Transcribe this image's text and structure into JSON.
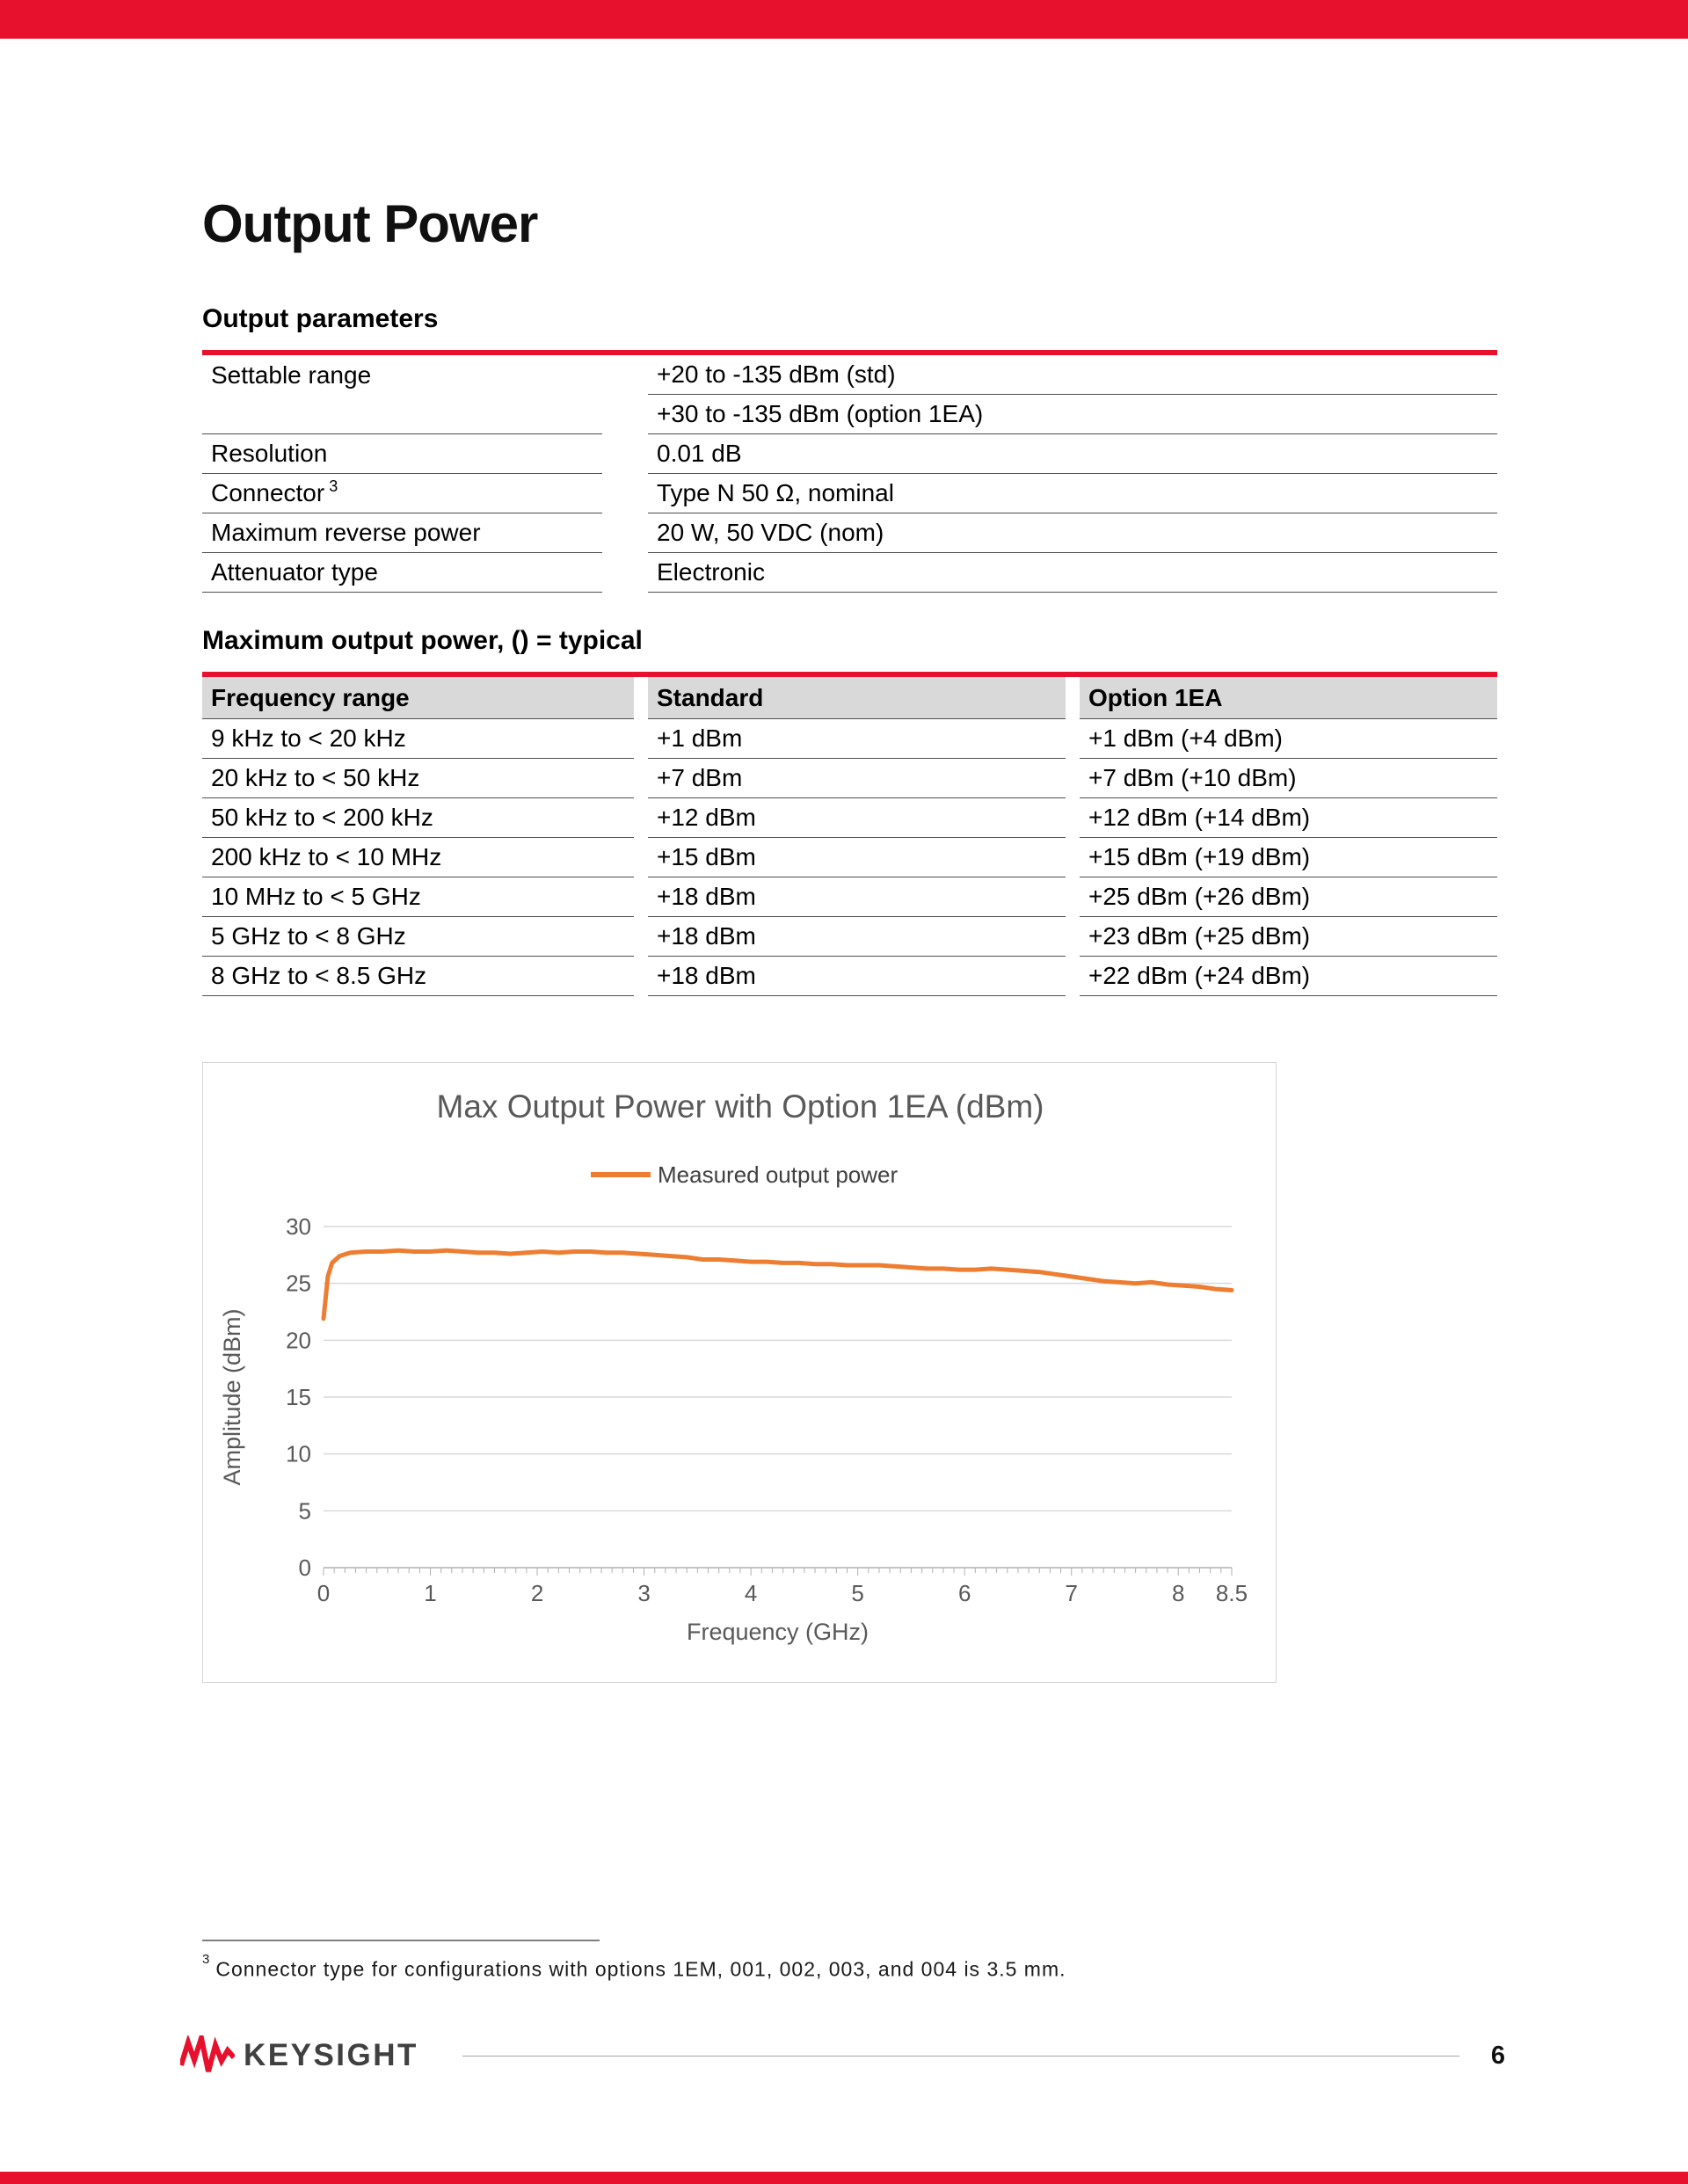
{
  "page": {
    "title": "Output Power",
    "page_number": "6",
    "brand": "KEYSIGHT"
  },
  "footnote": {
    "marker": "3",
    "text": "Connector type for configurations with options 1EM, 001, 002, 003, and 004 is 3.5 mm."
  },
  "output_parameters": {
    "heading": "Output parameters",
    "rows": [
      {
        "label": "Settable range",
        "values": [
          "+20 to -135 dBm (std)",
          "+30 to -135 dBm (option 1EA)"
        ]
      },
      {
        "label": "Resolution",
        "values": [
          "0.01 dB"
        ]
      },
      {
        "label": "Connector",
        "label_sup": "3",
        "values": [
          "Type N 50 Ω, nominal"
        ]
      },
      {
        "label": "Maximum reverse power",
        "values": [
          "20 W, 50 VDC (nom)"
        ]
      },
      {
        "label": "Attenuator type",
        "values": [
          "Electronic"
        ]
      }
    ]
  },
  "max_output_power": {
    "heading": "Maximum output power, () = typical",
    "columns": [
      "Frequency range",
      "Standard",
      "Option 1EA"
    ],
    "rows": [
      [
        "9 kHz to < 20 kHz",
        "+1 dBm",
        "+1 dBm (+4 dBm)"
      ],
      [
        "20 kHz to < 50 kHz",
        "+7 dBm",
        "+7 dBm (+10 dBm)"
      ],
      [
        "50 kHz to < 200 kHz",
        "+12 dBm",
        "+12 dBm (+14 dBm)"
      ],
      [
        "200 kHz to < 10 MHz",
        "+15 dBm",
        "+15 dBm (+19 dBm)"
      ],
      [
        "10 MHz to < 5 GHz",
        "+18 dBm",
        "+25 dBm (+26 dBm)"
      ],
      [
        "5 GHz to < 8 GHz",
        "+18 dBm",
        "+23 dBm (+25 dBm)"
      ],
      [
        "8 GHz to < 8.5 GHz",
        "+18 dBm",
        "+22 dBm (+24 dBm)"
      ]
    ]
  },
  "chart_data": {
    "type": "line",
    "title": "Max Output Power with Option 1EA (dBm)",
    "legend": [
      "Measured output power"
    ],
    "legend_position": "top",
    "xlabel": "Frequency (GHz)",
    "ylabel": "Amplitude (dBm)",
    "xlim": [
      0,
      8.5
    ],
    "ylim": [
      0,
      30
    ],
    "xticks": [
      0,
      1,
      2,
      3,
      4,
      5,
      6,
      7,
      8,
      8.5
    ],
    "yticks": [
      0,
      5,
      10,
      15,
      20,
      25,
      30
    ],
    "grid": "horizontal",
    "line_color": "#ED7D31",
    "series": [
      {
        "name": "Measured output power",
        "points": [
          [
            0,
            21.9
          ],
          [
            0.04,
            25.6
          ],
          [
            0.08,
            26.8
          ],
          [
            0.15,
            27.4
          ],
          [
            0.25,
            27.7
          ],
          [
            0.4,
            27.8
          ],
          [
            0.55,
            27.8
          ],
          [
            0.7,
            27.9
          ],
          [
            0.85,
            27.8
          ],
          [
            1,
            27.8
          ],
          [
            1.15,
            27.9
          ],
          [
            1.3,
            27.8
          ],
          [
            1.45,
            27.7
          ],
          [
            1.6,
            27.7
          ],
          [
            1.75,
            27.6
          ],
          [
            1.9,
            27.7
          ],
          [
            2.05,
            27.8
          ],
          [
            2.2,
            27.7
          ],
          [
            2.35,
            27.8
          ],
          [
            2.5,
            27.8
          ],
          [
            2.65,
            27.7
          ],
          [
            2.8,
            27.7
          ],
          [
            2.95,
            27.6
          ],
          [
            3.1,
            27.5
          ],
          [
            3.25,
            27.4
          ],
          [
            3.4,
            27.3
          ],
          [
            3.55,
            27.1
          ],
          [
            3.7,
            27.1
          ],
          [
            3.85,
            27
          ],
          [
            4,
            26.9
          ],
          [
            4.15,
            26.9
          ],
          [
            4.3,
            26.8
          ],
          [
            4.45,
            26.8
          ],
          [
            4.6,
            26.7
          ],
          [
            4.75,
            26.7
          ],
          [
            4.9,
            26.6
          ],
          [
            5.05,
            26.6
          ],
          [
            5.2,
            26.6
          ],
          [
            5.35,
            26.5
          ],
          [
            5.5,
            26.4
          ],
          [
            5.65,
            26.3
          ],
          [
            5.8,
            26.3
          ],
          [
            5.95,
            26.2
          ],
          [
            6.1,
            26.2
          ],
          [
            6.25,
            26.3
          ],
          [
            6.4,
            26.2
          ],
          [
            6.55,
            26.1
          ],
          [
            6.7,
            26
          ],
          [
            6.85,
            25.8
          ],
          [
            7,
            25.6
          ],
          [
            7.15,
            25.4
          ],
          [
            7.3,
            25.2
          ],
          [
            7.45,
            25.1
          ],
          [
            7.6,
            25
          ],
          [
            7.75,
            25.1
          ],
          [
            7.9,
            24.9
          ],
          [
            8.05,
            24.8
          ],
          [
            8.2,
            24.7
          ],
          [
            8.35,
            24.5
          ],
          [
            8.5,
            24.4
          ]
        ]
      }
    ]
  },
  "colors": {
    "accent_red": "#E8112D",
    "line_orange": "#ED7D31",
    "header_gray": "#D9D9D9",
    "chart_text_gray": "#595959"
  }
}
